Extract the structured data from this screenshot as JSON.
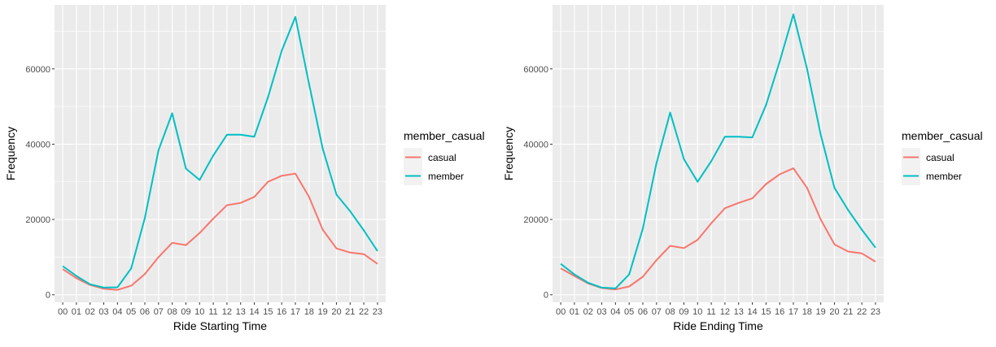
{
  "chart_data": [
    {
      "type": "line",
      "xlabel": "Ride Starting Time",
      "ylabel": "Frequency",
      "categories": [
        "00",
        "01",
        "02",
        "03",
        "04",
        "05",
        "06",
        "07",
        "08",
        "09",
        "10",
        "11",
        "12",
        "13",
        "14",
        "15",
        "16",
        "17",
        "18",
        "19",
        "20",
        "21",
        "22",
        "23"
      ],
      "yticks": [
        0,
        20000,
        40000,
        60000
      ],
      "yticklabels": [
        "0",
        "20000",
        "40000",
        "60000"
      ],
      "ylim": [
        -2000,
        77000
      ],
      "grid": true,
      "legend": {
        "title": "member_casual",
        "position": "right"
      },
      "series": [
        {
          "name": "casual",
          "color": "#F8766D",
          "values": [
            6800,
            4400,
            2600,
            1600,
            1300,
            2400,
            5500,
            10000,
            13800,
            13200,
            16400,
            20200,
            23800,
            24400,
            26000,
            30000,
            31600,
            32200,
            26000,
            17300,
            12300,
            11200,
            10800,
            8200
          ]
        },
        {
          "name": "member",
          "color": "#00BFC4",
          "values": [
            7600,
            5000,
            2800,
            1900,
            2000,
            7000,
            20400,
            38400,
            48200,
            33500,
            30500,
            37000,
            42500,
            42500,
            42000,
            52500,
            64800,
            73800,
            56000,
            38800,
            26600,
            22200,
            17100,
            11600
          ]
        }
      ]
    },
    {
      "type": "line",
      "xlabel": "Ride Ending Time",
      "ylabel": "Frequency",
      "categories": [
        "00",
        "01",
        "02",
        "03",
        "04",
        "05",
        "06",
        "07",
        "08",
        "09",
        "10",
        "11",
        "12",
        "13",
        "14",
        "15",
        "16",
        "17",
        "18",
        "19",
        "20",
        "21",
        "22",
        "23"
      ],
      "yticks": [
        0,
        20000,
        40000,
        60000
      ],
      "yticklabels": [
        "0",
        "20000",
        "40000",
        "60000"
      ],
      "ylim": [
        -2000,
        77000
      ],
      "grid": true,
      "legend": {
        "title": "member_casual",
        "position": "right"
      },
      "series": [
        {
          "name": "casual",
          "color": "#F8766D",
          "values": [
            7000,
            5000,
            3000,
            1800,
            1400,
            2200,
            4800,
            9200,
            13000,
            12400,
            14600,
            19000,
            23000,
            24400,
            25600,
            29400,
            32000,
            33600,
            28400,
            20000,
            13400,
            11500,
            11000,
            8800
          ]
        },
        {
          "name": "member",
          "color": "#00BFC4",
          "values": [
            8200,
            5400,
            3200,
            1900,
            1700,
            5400,
            17600,
            35000,
            48400,
            36000,
            30000,
            35500,
            42000,
            42000,
            41800,
            50400,
            62000,
            74500,
            60000,
            42500,
            28400,
            22500,
            17300,
            12500
          ]
        }
      ]
    }
  ]
}
